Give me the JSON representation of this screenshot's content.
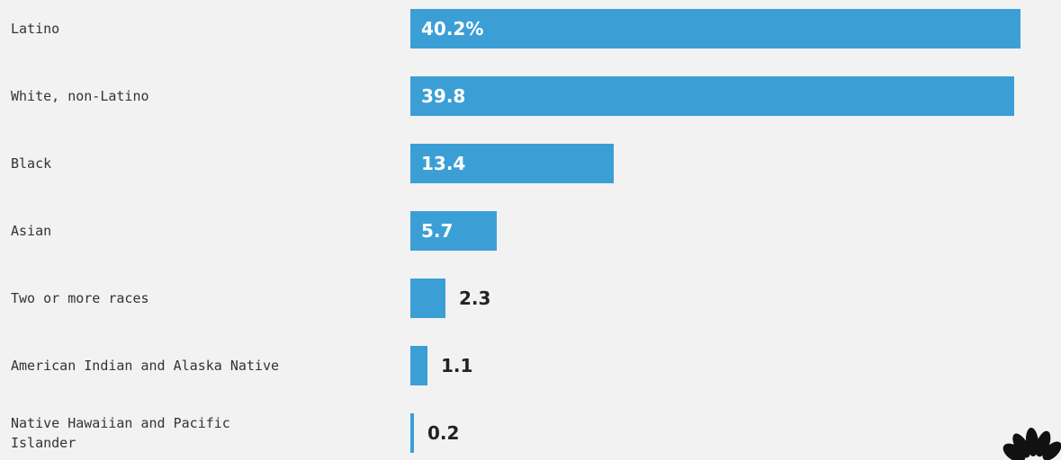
{
  "chart_data": {
    "type": "bar",
    "orientation": "horizontal",
    "categories": [
      [
        "Latino"
      ],
      [
        "White, non-Latino"
      ],
      [
        "Black"
      ],
      [
        "Asian"
      ],
      [
        "Two or more races"
      ],
      [
        "American Indian and Alaska Native"
      ],
      [
        "Native Hawaiian and Pacific",
        "Islander"
      ]
    ],
    "values": [
      40.2,
      39.8,
      13.4,
      5.7,
      2.3,
      1.1,
      0.2
    ],
    "value_labels": [
      "40.2%",
      "39.8",
      "13.4",
      "5.7",
      "2.3",
      "1.1",
      "0.2"
    ],
    "bar_color": "#3b9fd6",
    "title": "",
    "xlabel": "",
    "ylabel": "",
    "xlim": [
      0,
      40.2
    ],
    "grid": false,
    "legend": "none"
  },
  "logo": {
    "icon": "nbc-peacock-icon"
  }
}
